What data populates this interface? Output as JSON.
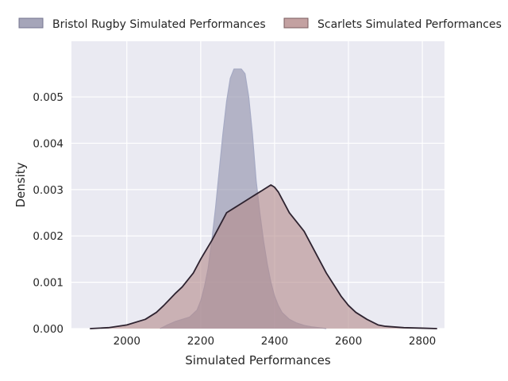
{
  "chart_data": {
    "type": "area",
    "title": "",
    "xlabel": "Simulated Performances",
    "ylabel": "Density",
    "xlim": [
      1850,
      2860
    ],
    "ylim": [
      0,
      0.0062
    ],
    "xticks": [
      2000,
      2200,
      2400,
      2600,
      2800
    ],
    "xtick_labels": [
      "2000",
      "2200",
      "2400",
      "2600",
      "2800"
    ],
    "yticks": [
      0,
      0.001,
      0.002,
      0.003,
      0.004,
      0.005
    ],
    "ytick_labels": [
      "0.000",
      "0.001",
      "0.002",
      "0.003",
      "0.004",
      "0.005"
    ],
    "grid": true,
    "legend_position": "top",
    "series": [
      {
        "name": "Bristol Rugby Simulated Performances",
        "color": "#8e8ea8",
        "line_color": "#a6aac4",
        "x": [
          2090,
          2110,
          2130,
          2150,
          2170,
          2190,
          2200,
          2210,
          2220,
          2230,
          2240,
          2250,
          2260,
          2270,
          2280,
          2290,
          2300,
          2310,
          2320,
          2330,
          2340,
          2350,
          2360,
          2370,
          2380,
          2390,
          2400,
          2410,
          2420,
          2440,
          2460,
          2480,
          2500,
          2520,
          2540
        ],
        "y": [
          0.0,
          8e-05,
          0.00015,
          0.0002,
          0.00025,
          0.0004,
          0.0006,
          0.0009,
          0.0013,
          0.0019,
          0.0026,
          0.0034,
          0.0042,
          0.0049,
          0.0054,
          0.0056,
          0.0056,
          0.0056,
          0.0055,
          0.005,
          0.0042,
          0.0032,
          0.0025,
          0.0019,
          0.0014,
          0.001,
          0.0007,
          0.0005,
          0.00035,
          0.0002,
          0.00012,
          7e-05,
          4e-05,
          2e-05,
          0.0
        ]
      },
      {
        "name": "Scarlets Simulated Performances",
        "color": "#b48a8a",
        "line_color": "#2e2330",
        "x": [
          1900,
          1950,
          2000,
          2050,
          2080,
          2100,
          2130,
          2150,
          2180,
          2200,
          2230,
          2250,
          2270,
          2290,
          2310,
          2330,
          2350,
          2370,
          2390,
          2400,
          2410,
          2420,
          2440,
          2460,
          2480,
          2500,
          2520,
          2540,
          2560,
          2580,
          2600,
          2620,
          2650,
          2680,
          2700,
          2750,
          2800,
          2840
        ],
        "y": [
          0.0,
          2e-05,
          8e-05,
          0.0002,
          0.00035,
          0.0005,
          0.00075,
          0.0009,
          0.0012,
          0.0015,
          0.0019,
          0.0022,
          0.0025,
          0.0026,
          0.0027,
          0.0028,
          0.0029,
          0.003,
          0.0031,
          0.00305,
          0.00295,
          0.0028,
          0.0025,
          0.0023,
          0.0021,
          0.0018,
          0.0015,
          0.0012,
          0.00095,
          0.0007,
          0.0005,
          0.00035,
          0.0002,
          8e-05,
          5e-05,
          2e-05,
          1e-05,
          0.0
        ]
      }
    ]
  }
}
